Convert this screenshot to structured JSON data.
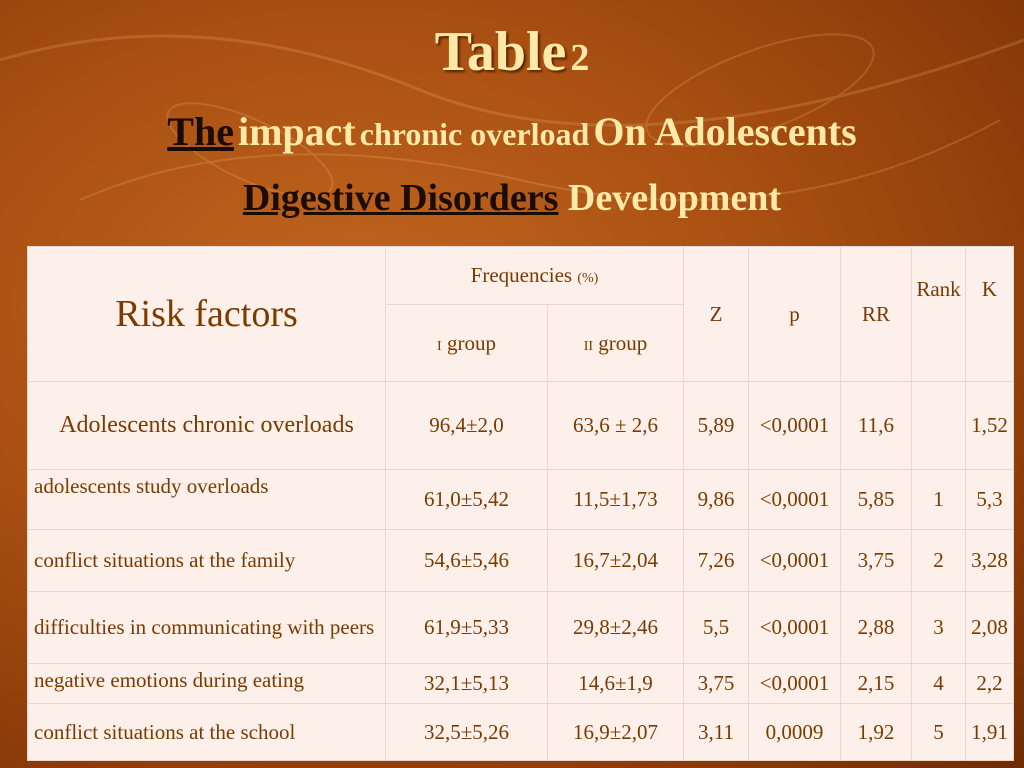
{
  "title": {
    "word": "Table",
    "number": "2",
    "line1": [
      "The",
      "impact",
      "chronic overload",
      "On Adolescents"
    ],
    "line2": [
      "Digestive Disorders",
      "Development"
    ]
  },
  "table": {
    "headers": {
      "risk_factors": "Risk factors",
      "frequencies": "Frequencies",
      "frequencies_unit": "(%)",
      "group1_prefix": "I",
      "group1": "group",
      "group2_prefix": "II",
      "group2": "group",
      "z": "Z",
      "p": "p",
      "rr": "RR",
      "rank": "Rank",
      "k": "K"
    },
    "rows": [
      {
        "factor": "Adolescents chronic overloads",
        "g1": "96,4±2,0",
        "g2": "63,6 ± 2,6",
        "z": "5,89",
        "p": "<0,0001",
        "rr": "11,6",
        "rank": "",
        "k": "1,52"
      },
      {
        "factor": "adolescents study overloads",
        "g1": "61,0±5,42",
        "g2": "11,5±1,73",
        "z": "9,86",
        "p": "<0,0001",
        "rr": "5,85",
        "rank": "1",
        "k": "5,3"
      },
      {
        "factor": "conflict situations at the family",
        "g1": "54,6±5,46",
        "g2": "16,7±2,04",
        "z": "7,26",
        "p": "<0,0001",
        "rr": "3,75",
        "rank": "2",
        "k": "3,28"
      },
      {
        "factor": "difficulties in communicating with peers",
        "g1": "61,9±5,33",
        "g2": "29,8±2,46",
        "z": "5,5",
        "p": "<0,0001",
        "rr": "2,88",
        "rank": "3",
        "k": "2,08"
      },
      {
        "factor": "negative emotions during eating",
        "g1": "32,1±5,13",
        "g2": "14,6±1,9",
        "z": "3,75",
        "p": "<0,0001",
        "rr": "2,15",
        "rank": "4",
        "k": "2,2"
      },
      {
        "factor": "conflict situations at the school",
        "g1": "32,5±5,26",
        "g2": "16,9±2,07",
        "z": "3,11",
        "p": "0,0009",
        "rr": "1,92",
        "rank": "5",
        "k": "1,91"
      }
    ]
  }
}
